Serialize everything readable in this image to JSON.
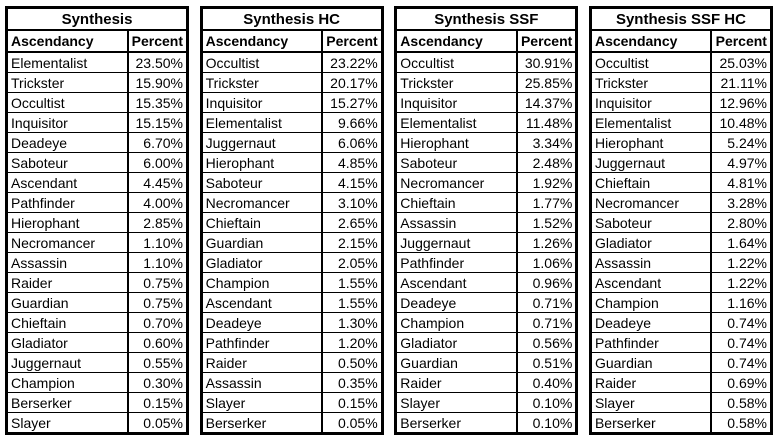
{
  "colors": {
    "border": "#000000",
    "text": "#000000",
    "background": "#FFFFFF"
  },
  "chart_data": [
    {
      "type": "table",
      "title": "Synthesis",
      "columns": [
        "Ascendancy",
        "Percent"
      ],
      "rows": [
        [
          "Elementalist",
          "23.50%"
        ],
        [
          "Trickster",
          "15.90%"
        ],
        [
          "Occultist",
          "15.35%"
        ],
        [
          "Inquisitor",
          "15.15%"
        ],
        [
          "Deadeye",
          "6.70%"
        ],
        [
          "Saboteur",
          "6.00%"
        ],
        [
          "Ascendant",
          "4.45%"
        ],
        [
          "Pathfinder",
          "4.00%"
        ],
        [
          "Hierophant",
          "2.85%"
        ],
        [
          "Necromancer",
          "1.10%"
        ],
        [
          "Assassin",
          "1.10%"
        ],
        [
          "Raider",
          "0.75%"
        ],
        [
          "Guardian",
          "0.75%"
        ],
        [
          "Chieftain",
          "0.70%"
        ],
        [
          "Gladiator",
          "0.60%"
        ],
        [
          "Juggernaut",
          "0.55%"
        ],
        [
          "Champion",
          "0.30%"
        ],
        [
          "Berserker",
          "0.15%"
        ],
        [
          "Slayer",
          "0.05%"
        ]
      ]
    },
    {
      "type": "table",
      "title": "Synthesis HC",
      "columns": [
        "Ascendancy",
        "Percent"
      ],
      "rows": [
        [
          "Occultist",
          "23.22%"
        ],
        [
          "Trickster",
          "20.17%"
        ],
        [
          "Inquisitor",
          "15.27%"
        ],
        [
          "Elementalist",
          "9.66%"
        ],
        [
          "Juggernaut",
          "6.06%"
        ],
        [
          "Hierophant",
          "4.85%"
        ],
        [
          "Saboteur",
          "4.15%"
        ],
        [
          "Necromancer",
          "3.10%"
        ],
        [
          "Chieftain",
          "2.65%"
        ],
        [
          "Guardian",
          "2.15%"
        ],
        [
          "Gladiator",
          "2.05%"
        ],
        [
          "Champion",
          "1.55%"
        ],
        [
          "Ascendant",
          "1.55%"
        ],
        [
          "Deadeye",
          "1.30%"
        ],
        [
          "Pathfinder",
          "1.20%"
        ],
        [
          "Raider",
          "0.50%"
        ],
        [
          "Assassin",
          "0.35%"
        ],
        [
          "Slayer",
          "0.15%"
        ],
        [
          "Berserker",
          "0.05%"
        ]
      ]
    },
    {
      "type": "table",
      "title": "Synthesis SSF",
      "columns": [
        "Ascendancy",
        "Percent"
      ],
      "rows": [
        [
          "Occultist",
          "30.91%"
        ],
        [
          "Trickster",
          "25.85%"
        ],
        [
          "Inquisitor",
          "14.37%"
        ],
        [
          "Elementalist",
          "11.48%"
        ],
        [
          "Hierophant",
          "3.34%"
        ],
        [
          "Saboteur",
          "2.48%"
        ],
        [
          "Necromancer",
          "1.92%"
        ],
        [
          "Chieftain",
          "1.77%"
        ],
        [
          "Assassin",
          "1.52%"
        ],
        [
          "Juggernaut",
          "1.26%"
        ],
        [
          "Pathfinder",
          "1.06%"
        ],
        [
          "Ascendant",
          "0.96%"
        ],
        [
          "Deadeye",
          "0.71%"
        ],
        [
          "Champion",
          "0.71%"
        ],
        [
          "Gladiator",
          "0.56%"
        ],
        [
          "Guardian",
          "0.51%"
        ],
        [
          "Raider",
          "0.40%"
        ],
        [
          "Slayer",
          "0.10%"
        ],
        [
          "Berserker",
          "0.10%"
        ]
      ]
    },
    {
      "type": "table",
      "title": "Synthesis SSF HC",
      "columns": [
        "Ascendancy",
        "Percent"
      ],
      "rows": [
        [
          "Occultist",
          "25.03%"
        ],
        [
          "Trickster",
          "21.11%"
        ],
        [
          "Inquisitor",
          "12.96%"
        ],
        [
          "Elementalist",
          "10.48%"
        ],
        [
          "Hierophant",
          "5.24%"
        ],
        [
          "Juggernaut",
          "4.97%"
        ],
        [
          "Chieftain",
          "4.81%"
        ],
        [
          "Necromancer",
          "3.28%"
        ],
        [
          "Saboteur",
          "2.80%"
        ],
        [
          "Gladiator",
          "1.64%"
        ],
        [
          "Assassin",
          "1.22%"
        ],
        [
          "Ascendant",
          "1.22%"
        ],
        [
          "Champion",
          "1.16%"
        ],
        [
          "Deadeye",
          "0.74%"
        ],
        [
          "Pathfinder",
          "0.74%"
        ],
        [
          "Guardian",
          "0.74%"
        ],
        [
          "Raider",
          "0.69%"
        ],
        [
          "Slayer",
          "0.58%"
        ],
        [
          "Berserker",
          "0.58%"
        ]
      ]
    }
  ]
}
